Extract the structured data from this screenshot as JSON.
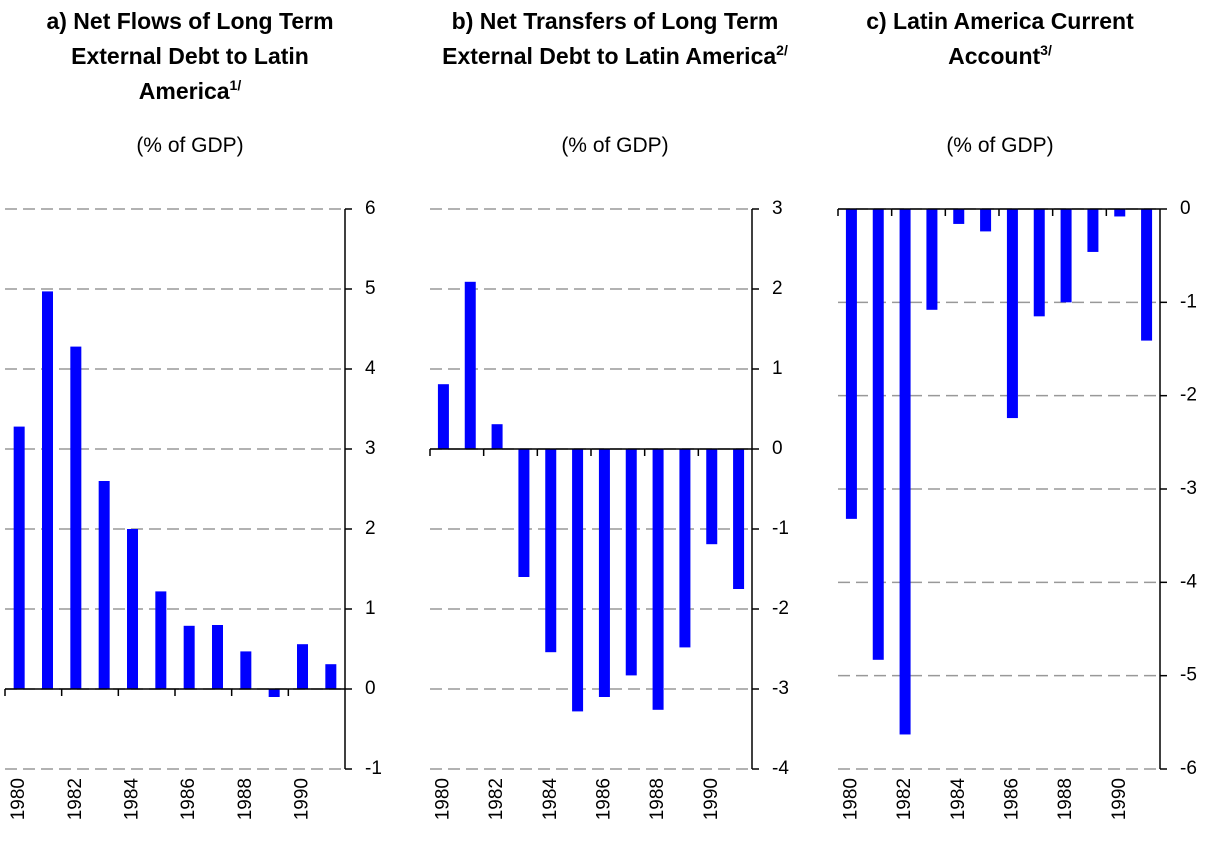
{
  "chart_data": [
    {
      "type": "bar",
      "title": "a) Net Flows of Long Term External Debt to Latin America",
      "footnote": "1/",
      "subtitle": "(% of GDP)",
      "categories": [
        "1980",
        null,
        "1982",
        null,
        "1984",
        null,
        "1986",
        null,
        "1988",
        null,
        "1990",
        null
      ],
      "values": [
        3.28,
        4.97,
        4.28,
        2.6,
        2.0,
        1.22,
        0.79,
        0.8,
        0.47,
        -0.1,
        0.56,
        0.31
      ],
      "color": "#0000ff",
      "ylim": [
        -1,
        6
      ],
      "yticks": [
        -1,
        0,
        1,
        2,
        3,
        4,
        5,
        6
      ],
      "grid": true
    },
    {
      "type": "bar",
      "title": "b) Net Transfers of Long Term External Debt to Latin America",
      "footnote": "2/",
      "subtitle": "(% of GDP)",
      "categories": [
        "1980",
        null,
        "1982",
        null,
        "1984",
        null,
        "1986",
        null,
        "1988",
        null,
        "1990",
        null
      ],
      "values": [
        0.81,
        2.09,
        0.31,
        -1.6,
        -2.54,
        -3.28,
        -3.1,
        -2.83,
        -3.26,
        -2.48,
        -1.19,
        -1.75
      ],
      "color": "#0000ff",
      "ylim": [
        -4,
        3
      ],
      "yticks": [
        -4,
        -3,
        -2,
        -1,
        0,
        1,
        2,
        3
      ],
      "grid": true
    },
    {
      "type": "bar",
      "title": "c) Latin America Current Account",
      "footnote": "3/",
      "subtitle": "(% of GDP)",
      "categories": [
        "1980",
        null,
        "1982",
        null,
        "1984",
        null,
        "1986",
        null,
        "1988",
        null,
        "1990",
        null
      ],
      "values": [
        -3.32,
        -4.83,
        -5.63,
        -1.08,
        -0.16,
        -0.24,
        -2.24,
        -1.15,
        -1.0,
        -0.46,
        -0.08,
        -1.41
      ],
      "color": "#0000ff",
      "ylim": [
        -6,
        0
      ],
      "yticks": [
        -6,
        -5,
        -4,
        -3,
        -2,
        -1,
        0
      ],
      "grid": true
    }
  ]
}
